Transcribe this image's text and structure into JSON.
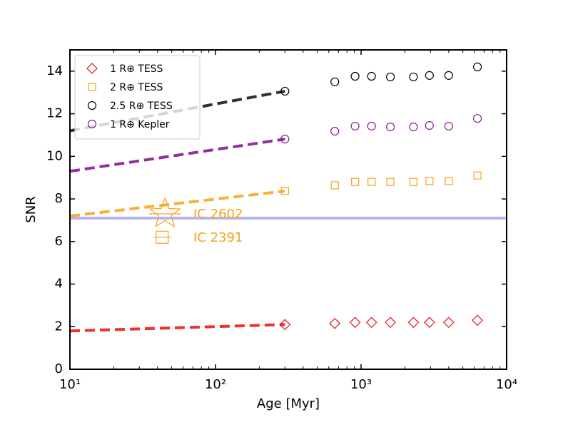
{
  "chart_data": {
    "type": "scatter",
    "x_label": "Age [Myr]",
    "y_label": "SNR",
    "xscale": "log",
    "xlim": [
      10,
      10000
    ],
    "ylim": [
      0,
      15
    ],
    "xticks": [
      {
        "value": 10,
        "label": "10¹"
      },
      {
        "value": 100,
        "label": "10²"
      },
      {
        "value": 1000,
        "label": "10³"
      },
      {
        "value": 10000,
        "label": "10⁴"
      }
    ],
    "yticks": [
      0,
      2,
      4,
      6,
      8,
      10,
      12,
      14
    ],
    "legend": "upper left",
    "x": [
      300,
      660,
      910,
      1180,
      1590,
      2290,
      2950,
      4000,
      6300
    ],
    "series": [
      {
        "name": "1 R⊕ TESS",
        "color": "#e8101a",
        "marker": "diamond",
        "values": [
          2.1,
          2.15,
          2.2,
          2.2,
          2.2,
          2.2,
          2.2,
          2.2,
          2.3
        ]
      },
      {
        "name": "2 R⊕ TESS",
        "color": "#f5a31a",
        "marker": "square",
        "values": [
          8.37,
          8.64,
          8.8,
          8.8,
          8.8,
          8.8,
          8.84,
          8.84,
          9.1
        ]
      },
      {
        "name": "2.5 R⊕ TESS",
        "color": "#000000",
        "marker": "circle",
        "values": [
          13.06,
          13.5,
          13.76,
          13.76,
          13.73,
          13.73,
          13.8,
          13.8,
          14.2
        ]
      },
      {
        "name": "1 R⊕ Kepler",
        "color": "#8b1a96",
        "marker": "circle",
        "values": [
          10.81,
          11.18,
          11.42,
          11.42,
          11.38,
          11.38,
          11.45,
          11.42,
          11.78
        ]
      }
    ],
    "trend_lines": [
      {
        "color": "#f03030",
        "x": [
          10,
          300
        ],
        "values": [
          1.8,
          2.1
        ]
      },
      {
        "color": "#f8b030",
        "x": [
          10,
          300
        ],
        "values": [
          7.2,
          8.37
        ]
      },
      {
        "color": "#90309a",
        "x": [
          10,
          300
        ],
        "values": [
          9.3,
          10.81
        ]
      },
      {
        "color": "#303030",
        "x": [
          10,
          300
        ],
        "values": [
          11.2,
          13.06
        ]
      }
    ],
    "threshold": {
      "value": 7.1,
      "color": "#b4b4f0"
    },
    "clusters": [
      {
        "label": "IC 2602",
        "marker": "star",
        "color": "#f5a31a",
        "x": 45,
        "y": 7.3,
        "xmin": 35,
        "xmax": 58
      },
      {
        "label": "IC 2391",
        "marker": "square",
        "color": "#f5a31a",
        "x": 43,
        "y": 6.2,
        "xmin": 38,
        "xmax": 50
      }
    ]
  }
}
